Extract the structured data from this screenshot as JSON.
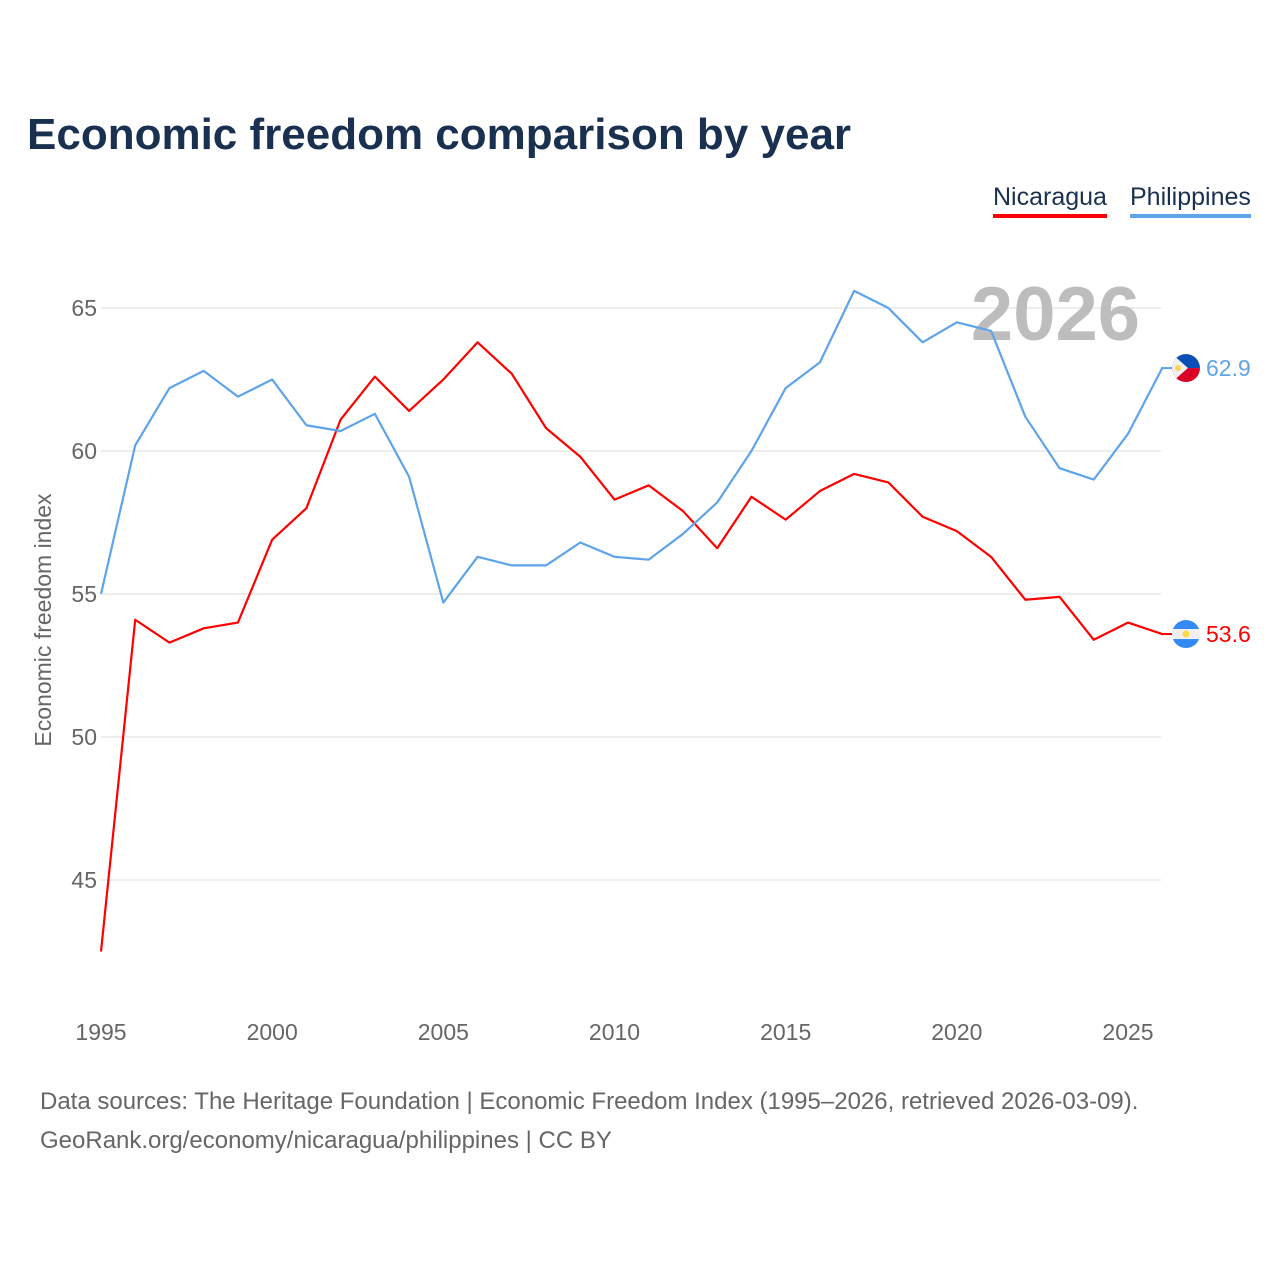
{
  "title": "Economic freedom comparison by year",
  "watermark_year": "2026",
  "footer": {
    "line1": "Data sources: The Heritage Foundation | Economic Freedom Index (1995–2026, retrieved 2026-03-09).",
    "line2": "GeoRank.org/economy/nicaragua/philippines | CC BY"
  },
  "chart_data": {
    "type": "line",
    "title": "Economic freedom comparison by year",
    "xlabel": "",
    "ylabel": "Economic freedom index",
    "xlim": [
      1995,
      2026
    ],
    "ylim": [
      41.5,
      66.5
    ],
    "xticks": [
      1995,
      2000,
      2005,
      2010,
      2015,
      2020,
      2025
    ],
    "yticks": [
      45,
      50,
      55,
      60,
      65
    ],
    "grid": true,
    "legend_position": "top-right",
    "x": [
      1995,
      1996,
      1997,
      1998,
      1999,
      2000,
      2001,
      2002,
      2003,
      2004,
      2005,
      2006,
      2007,
      2008,
      2009,
      2010,
      2011,
      2012,
      2013,
      2014,
      2015,
      2016,
      2017,
      2018,
      2019,
      2020,
      2021,
      2022,
      2023,
      2024,
      2025,
      2026
    ],
    "series": [
      {
        "name": "Nicaragua",
        "color": "#ff0000",
        "end_label": "53.6",
        "flag": "nicaragua-flag",
        "values": [
          42.5,
          54.1,
          53.3,
          53.8,
          54.0,
          56.9,
          58.0,
          61.1,
          62.6,
          61.4,
          62.5,
          63.8,
          62.7,
          60.8,
          59.8,
          58.3,
          58.8,
          57.9,
          56.6,
          58.4,
          57.6,
          58.6,
          59.2,
          58.9,
          57.7,
          57.2,
          56.3,
          54.8,
          54.9,
          53.4,
          54.0,
          53.6
        ]
      },
      {
        "name": "Philippines",
        "color": "#5fa4e8",
        "end_label": "62.9",
        "flag": "philippines-flag",
        "values": [
          55.0,
          60.2,
          62.2,
          62.8,
          61.9,
          62.5,
          60.9,
          60.7,
          61.3,
          59.1,
          54.7,
          56.3,
          56.0,
          56.0,
          56.8,
          56.3,
          56.2,
          57.1,
          58.2,
          60.0,
          62.2,
          63.1,
          65.6,
          65.0,
          63.8,
          64.5,
          64.2,
          61.2,
          59.4,
          59.0,
          60.6,
          62.9
        ]
      }
    ]
  }
}
